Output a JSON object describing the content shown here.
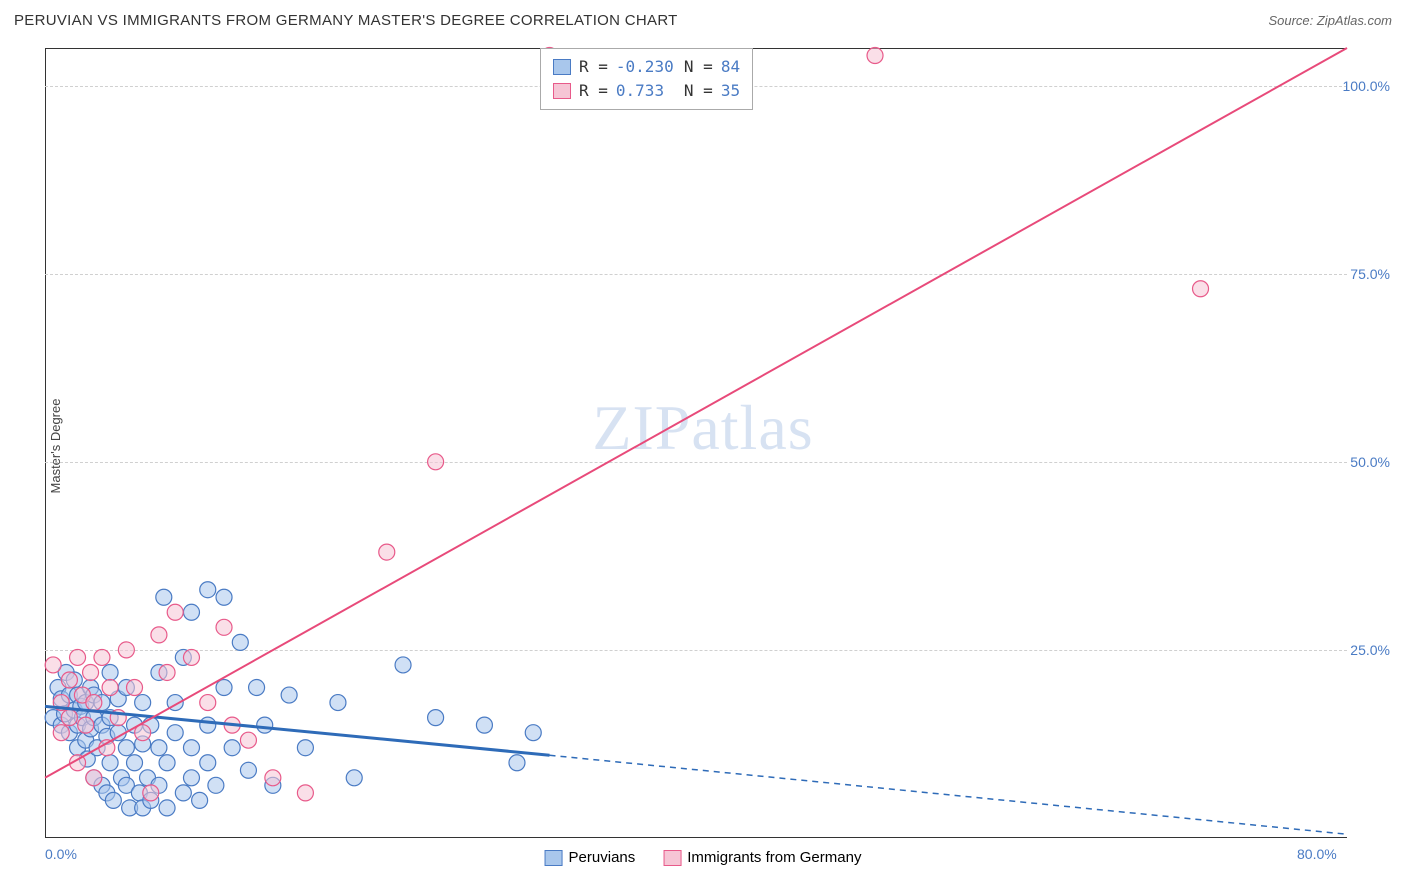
{
  "header": {
    "title": "PERUVIAN VS IMMIGRANTS FROM GERMANY MASTER'S DEGREE CORRELATION CHART",
    "source": "Source: ZipAtlas.com"
  },
  "watermark": "ZIPatlas",
  "chart": {
    "type": "scatter",
    "ylabel": "Master's Degree",
    "xlim": [
      0,
      80
    ],
    "ylim": [
      0,
      105
    ],
    "xticks": [
      {
        "value": 0,
        "label": "0.0%"
      },
      {
        "value": 80,
        "label": "80.0%"
      }
    ],
    "yticks": [
      {
        "value": 25,
        "label": "25.0%"
      },
      {
        "value": 50,
        "label": "50.0%"
      },
      {
        "value": 75,
        "label": "75.0%"
      },
      {
        "value": 100,
        "label": "100.0%"
      }
    ],
    "grid_color": "#d0d0d0",
    "background_color": "#ffffff",
    "marker_radius": 8,
    "marker_opacity": 0.55,
    "series": [
      {
        "name": "Peruvians",
        "color_fill": "#a9c7ec",
        "color_stroke": "#4a7bc4",
        "trend": {
          "solid": {
            "x1": 0,
            "y1": 17.5,
            "x2": 31,
            "y2": 11
          },
          "dashed": {
            "x1": 31,
            "y1": 11,
            "x2": 80,
            "y2": 0.5
          },
          "color": "#2e6bb8",
          "width_solid": 3,
          "width_dashed": 1.5,
          "dash": "6,5"
        },
        "stats": {
          "R": "-0.230",
          "N": "84"
        },
        "points": [
          [
            0.5,
            16
          ],
          [
            0.8,
            20
          ],
          [
            1,
            15
          ],
          [
            1,
            18.5
          ],
          [
            1.2,
            16.5
          ],
          [
            1.3,
            22
          ],
          [
            1.5,
            14
          ],
          [
            1.5,
            19
          ],
          [
            1.8,
            17
          ],
          [
            1.8,
            21
          ],
          [
            2,
            12
          ],
          [
            2,
            15
          ],
          [
            2,
            19
          ],
          [
            2.2,
            17.5
          ],
          [
            2.3,
            16
          ],
          [
            2.5,
            13
          ],
          [
            2.5,
            18
          ],
          [
            2.6,
            10.5
          ],
          [
            2.8,
            14.5
          ],
          [
            2.8,
            20
          ],
          [
            3,
            16
          ],
          [
            3,
            8
          ],
          [
            3,
            19
          ],
          [
            3.2,
            12
          ],
          [
            3.5,
            7
          ],
          [
            3.5,
            15
          ],
          [
            3.5,
            18
          ],
          [
            3.8,
            6
          ],
          [
            3.8,
            13.5
          ],
          [
            4,
            22
          ],
          [
            4,
            10
          ],
          [
            4,
            16
          ],
          [
            4.2,
            5
          ],
          [
            4.5,
            14
          ],
          [
            4.5,
            18.5
          ],
          [
            4.7,
            8
          ],
          [
            5,
            12
          ],
          [
            5,
            20
          ],
          [
            5,
            7
          ],
          [
            5.2,
            4
          ],
          [
            5.5,
            15
          ],
          [
            5.5,
            10
          ],
          [
            5.8,
            6
          ],
          [
            6,
            18
          ],
          [
            6,
            12.5
          ],
          [
            6,
            4
          ],
          [
            6.3,
            8
          ],
          [
            6.5,
            15
          ],
          [
            6.5,
            5
          ],
          [
            7,
            12
          ],
          [
            7,
            22
          ],
          [
            7,
            7
          ],
          [
            7.3,
            32
          ],
          [
            7.5,
            10
          ],
          [
            7.5,
            4
          ],
          [
            8,
            14
          ],
          [
            8,
            18
          ],
          [
            8.5,
            6
          ],
          [
            8.5,
            24
          ],
          [
            9,
            12
          ],
          [
            9,
            30
          ],
          [
            9,
            8
          ],
          [
            9.5,
            5
          ],
          [
            10,
            15
          ],
          [
            10,
            33
          ],
          [
            10,
            10
          ],
          [
            10.5,
            7
          ],
          [
            11,
            32
          ],
          [
            11,
            20
          ],
          [
            11.5,
            12
          ],
          [
            12,
            26
          ],
          [
            12.5,
            9
          ],
          [
            13,
            20
          ],
          [
            13.5,
            15
          ],
          [
            14,
            7
          ],
          [
            15,
            19
          ],
          [
            16,
            12
          ],
          [
            18,
            18
          ],
          [
            19,
            8
          ],
          [
            22,
            23
          ],
          [
            24,
            16
          ],
          [
            27,
            15
          ],
          [
            29,
            10
          ],
          [
            30,
            14
          ]
        ]
      },
      {
        "name": "Immigants from Germany",
        "legend_label": "Immigrants from Germany",
        "color_fill": "#f6c5d5",
        "color_stroke": "#e85a8a",
        "trend": {
          "solid": {
            "x1": 0,
            "y1": 8,
            "x2": 80,
            "y2": 105
          },
          "color": "#e84a7a",
          "width_solid": 2
        },
        "stats": {
          "R": "0.733",
          "N": "35"
        },
        "points": [
          [
            0.5,
            23
          ],
          [
            1,
            18
          ],
          [
            1,
            14
          ],
          [
            1.5,
            21
          ],
          [
            1.5,
            16
          ],
          [
            2,
            24
          ],
          [
            2,
            10
          ],
          [
            2.3,
            19
          ],
          [
            2.5,
            15
          ],
          [
            2.8,
            22
          ],
          [
            3,
            18
          ],
          [
            3,
            8
          ],
          [
            3.5,
            24
          ],
          [
            3.8,
            12
          ],
          [
            4,
            20
          ],
          [
            4.5,
            16
          ],
          [
            5,
            25
          ],
          [
            5.5,
            20
          ],
          [
            6,
            14
          ],
          [
            6.5,
            6
          ],
          [
            7,
            27
          ],
          [
            7.5,
            22
          ],
          [
            8,
            30
          ],
          [
            9,
            24
          ],
          [
            10,
            18
          ],
          [
            11,
            28
          ],
          [
            11.5,
            15
          ],
          [
            12.5,
            13
          ],
          [
            14,
            8
          ],
          [
            16,
            6
          ],
          [
            21,
            38
          ],
          [
            24,
            50
          ],
          [
            31,
            104
          ],
          [
            51,
            104
          ],
          [
            71,
            73
          ]
        ]
      }
    ]
  },
  "legend": {
    "items": [
      {
        "label": "Peruvians",
        "fill": "#a9c7ec",
        "stroke": "#4a7bc4"
      },
      {
        "label": "Immigrants from Germany",
        "fill": "#f6c5d5",
        "stroke": "#e85a8a"
      }
    ]
  },
  "stats_box": {
    "rows": [
      {
        "fill": "#a9c7ec",
        "stroke": "#4a7bc4",
        "R": "-0.230",
        "N": "84"
      },
      {
        "fill": "#f6c5d5",
        "stroke": "#e85a8a",
        "R": "0.733",
        "N": "35"
      }
    ]
  }
}
